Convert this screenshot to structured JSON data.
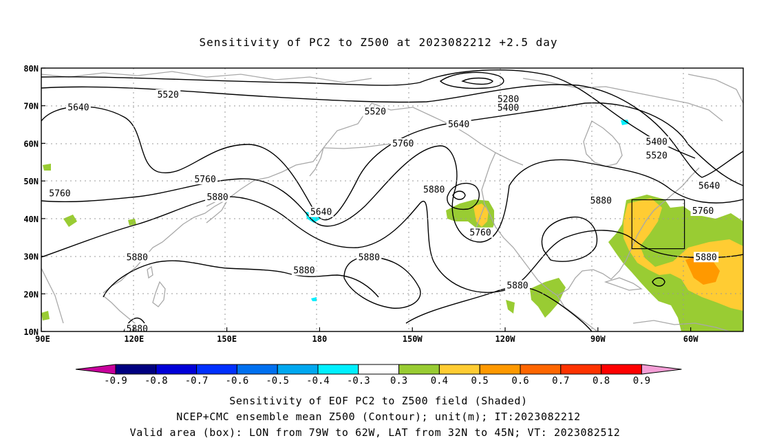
{
  "title": "Sensitivity of PC2 to Z500 at 2023082212 +2.5 day",
  "map": {
    "lon_ticks": [
      "90E",
      "120E",
      "150E",
      "180",
      "150W",
      "120W",
      "90W",
      "60W"
    ],
    "lat_ticks": [
      "80N",
      "70N",
      "60N",
      "50N",
      "40N",
      "30N",
      "20N",
      "10N"
    ],
    "lon_range": [
      90,
      317
    ],
    "lat_range": [
      10,
      80
    ],
    "grid": true,
    "valid_box": {
      "lon_w": -79,
      "lon_e": -62,
      "lat_s": 32,
      "lat_n": 45
    }
  },
  "contour_labels": [
    {
      "text": "5520",
      "lon": 131,
      "lat": 72.7
    },
    {
      "text": "5640",
      "lon": 102,
      "lat": 69.3
    },
    {
      "text": "5280",
      "lon": 241,
      "lat": 71.5
    },
    {
      "text": "5400",
      "lon": 241,
      "lat": 69.2
    },
    {
      "text": "5520",
      "lon": 198,
      "lat": 68.2
    },
    {
      "text": "5640",
      "lon": 225,
      "lat": 64.8
    },
    {
      "text": "5760",
      "lon": 207,
      "lat": 59.7
    },
    {
      "text": "5400",
      "lon": 289,
      "lat": 60.2
    },
    {
      "text": "5520",
      "lon": 289,
      "lat": 56.5
    },
    {
      "text": "5640",
      "lon": 306,
      "lat": 48.5
    },
    {
      "text": "5760",
      "lon": 143,
      "lat": 50.2
    },
    {
      "text": "5760",
      "lon": 96,
      "lat": 46.5
    },
    {
      "text": "5880",
      "lon": 147,
      "lat": 45.5
    },
    {
      "text": "5640",
      "lon": 180.5,
      "lat": 41.5
    },
    {
      "text": "5880",
      "lon": 217,
      "lat": 47.5
    },
    {
      "text": "5760",
      "lon": 232,
      "lat": 36
    },
    {
      "text": "5880",
      "lon": 271,
      "lat": 44.5
    },
    {
      "text": "5760",
      "lon": 304,
      "lat": 41.8
    },
    {
      "text": "5880",
      "lon": 305,
      "lat": 29.5
    },
    {
      "text": "5880",
      "lon": 121,
      "lat": 29.5
    },
    {
      "text": "5880",
      "lon": 196,
      "lat": 29.5
    },
    {
      "text": "5880",
      "lon": 175,
      "lat": 26
    },
    {
      "text": "5880",
      "lon": 244,
      "lat": 22
    },
    {
      "text": "5880",
      "lon": 121,
      "lat": 10.5
    }
  ],
  "colorbar": {
    "tick_labels": [
      "-0.9",
      "-0.8",
      "-0.7",
      "-0.6",
      "-0.5",
      "-0.4",
      "-0.3",
      "0.3",
      "0.4",
      "0.5",
      "0.6",
      "0.7",
      "0.8",
      "0.9"
    ],
    "colors": [
      "#c8009c",
      "#000080",
      "#0000d8",
      "#0030ff",
      "#0070f0",
      "#00a8f0",
      "#00f0ff",
      "#ffffff",
      "#99cc33",
      "#ffcc33",
      "#ff9900",
      "#ff6600",
      "#ff3300",
      "#ff0000",
      "#f49ed6"
    ]
  },
  "captions": [
    "Sensitivity of EOF PC2 to Z500 field (Shaded)",
    "NCEP+CMC ensemble mean Z500 (Contour); unit(m); IT:2023082212",
    "Valid area (box): LON from 79W to 62W, LAT from 32N to 45N; VT: 2023082512"
  ]
}
